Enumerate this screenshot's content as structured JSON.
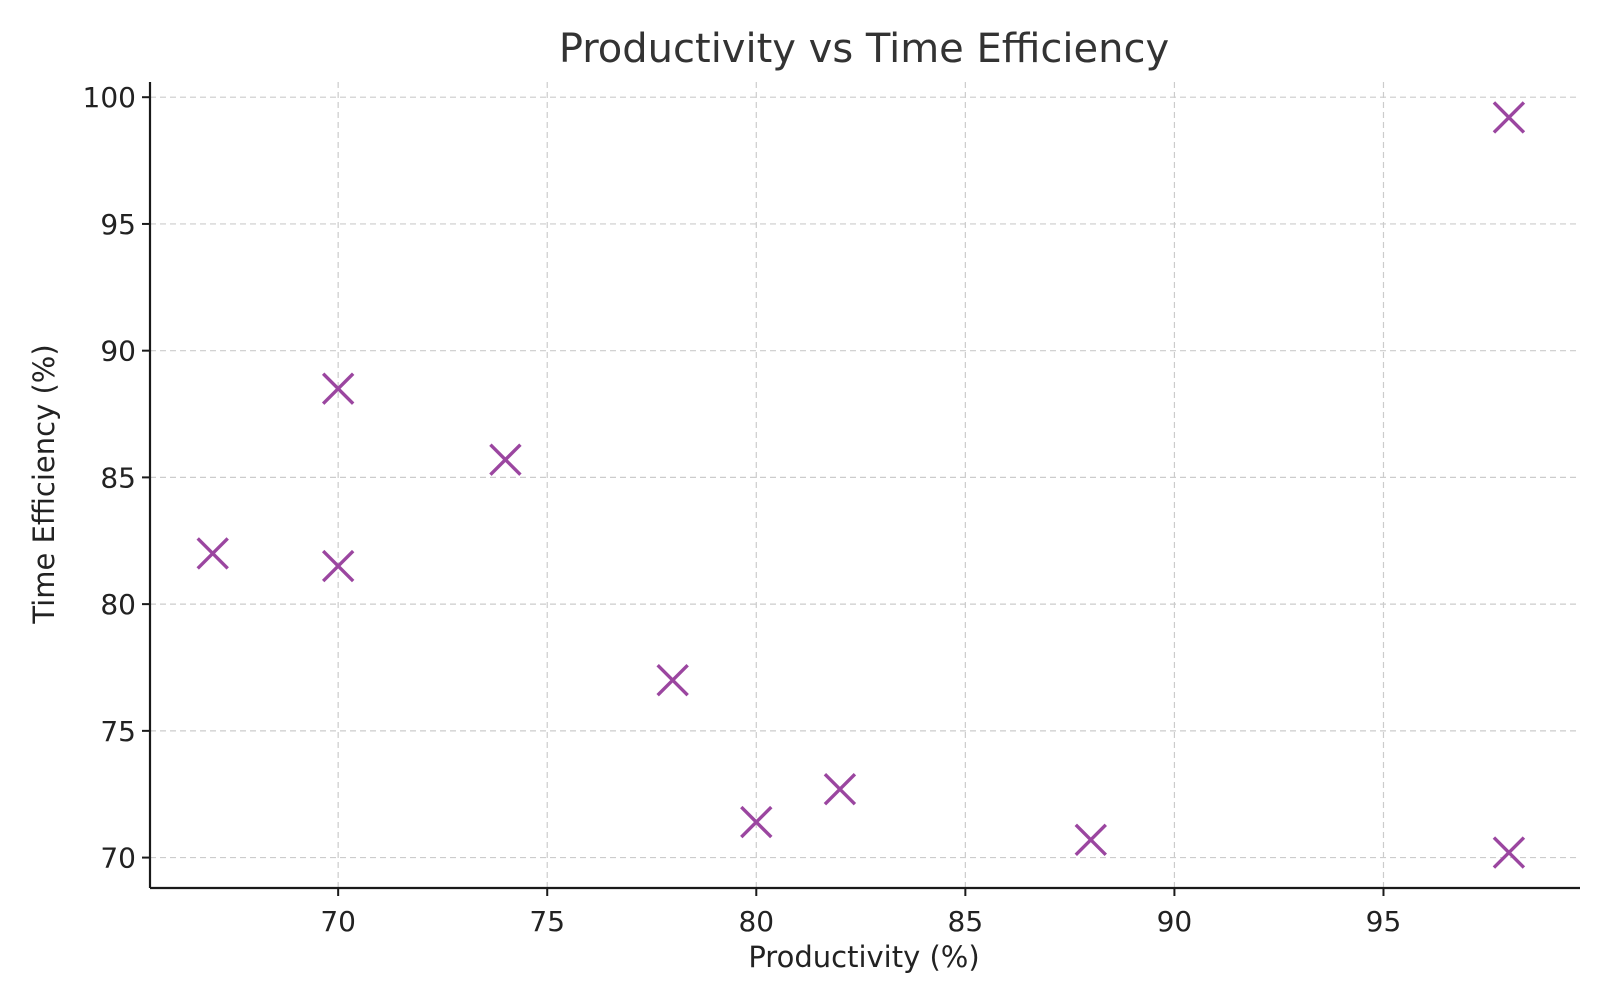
{
  "chart_data": {
    "type": "scatter",
    "title": "Productivity vs Time Efficiency",
    "xlabel": "Productivity (%)",
    "ylabel": "Time Efficiency (%)",
    "xlim": [
      65.5,
      99.7
    ],
    "ylim": [
      68.8,
      100.6
    ],
    "xticks": [
      70,
      75,
      80,
      85,
      90,
      95
    ],
    "yticks": [
      70,
      75,
      80,
      85,
      90,
      95,
      100
    ],
    "grid": true,
    "marker": "x",
    "color": "#9b46a0",
    "points": [
      {
        "x": 67,
        "y": 82.0
      },
      {
        "x": 70,
        "y": 88.5
      },
      {
        "x": 70,
        "y": 81.5
      },
      {
        "x": 74,
        "y": 85.7
      },
      {
        "x": 78,
        "y": 77.0
      },
      {
        "x": 80,
        "y": 71.4
      },
      {
        "x": 82,
        "y": 72.7
      },
      {
        "x": 88,
        "y": 70.7
      },
      {
        "x": 98,
        "y": 99.2
      },
      {
        "x": 98,
        "y": 70.2
      }
    ]
  }
}
